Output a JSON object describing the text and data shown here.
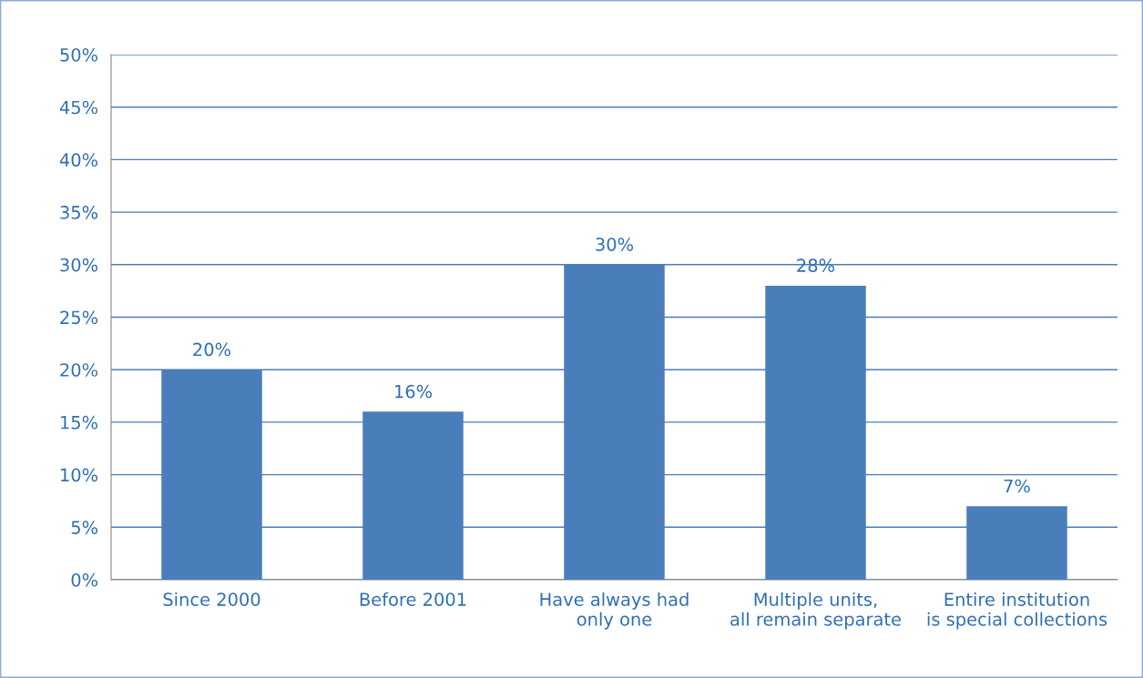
{
  "chart_data": {
    "type": "bar",
    "categories": [
      "Since 2000",
      "Before 2001",
      "Have always had\nonly one",
      "Multiple units,\nall remain separate",
      "Entire institution\nis special collections"
    ],
    "values": [
      20,
      16,
      30,
      28,
      7
    ],
    "color": "#4a7ebb",
    "ylim": [
      0,
      50
    ],
    "yticks": [
      {
        "value": 0,
        "label": "0%"
      },
      {
        "value": 5,
        "label": "5%"
      },
      {
        "value": 10,
        "label": "10%"
      },
      {
        "value": 15,
        "label": "15%"
      },
      {
        "value": 20,
        "label": "20%"
      },
      {
        "value": 25,
        "label": "25%"
      },
      {
        "value": 30,
        "label": "30%"
      },
      {
        "value": 35,
        "label": "35%"
      },
      {
        "value": 40,
        "label": "40%"
      },
      {
        "value": 45,
        "label": "45%"
      },
      {
        "value": 50,
        "label": "50%"
      }
    ],
    "value_labels": [
      "20%",
      "16%",
      "30%",
      "28%",
      "7%"
    ],
    "grid": "y",
    "legend": false
  }
}
